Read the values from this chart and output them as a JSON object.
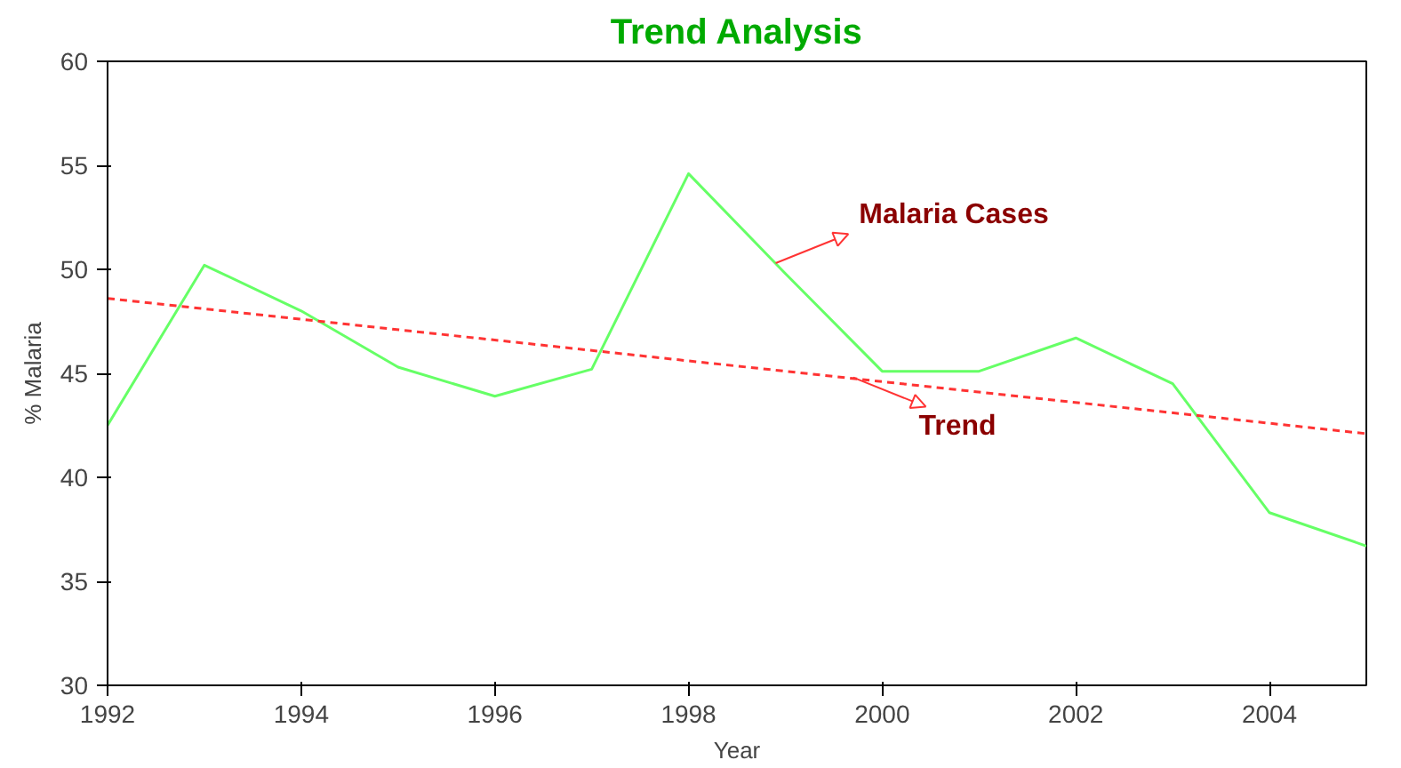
{
  "chart_data": {
    "type": "line",
    "title": "Trend Analysis",
    "xlabel": "Year",
    "ylabel": "% Malaria",
    "xlim": [
      1992,
      2005
    ],
    "ylim": [
      30,
      60
    ],
    "xticks": [
      1992,
      1994,
      1996,
      1998,
      2000,
      2002,
      2004
    ],
    "yticks": [
      30,
      35,
      40,
      45,
      50,
      55,
      60
    ],
    "grid": false,
    "marker": "none",
    "series": [
      {
        "color": "#66ff66",
        "x": [
          1992,
          1993,
          1994,
          1995,
          1996,
          1997,
          1998,
          1999,
          2000,
          2001,
          2002,
          2003,
          2004,
          2005
        ],
        "values": [
          42.5,
          50.2,
          48.0,
          45.3,
          43.9,
          45.2,
          54.6,
          49.8,
          45.1,
          45.1,
          46.7,
          44.5,
          38.3,
          36.7
        ],
        "line_style": "solid"
      },
      {
        "color": "#ff3333",
        "x": [
          1992,
          2005
        ],
        "values": [
          48.6,
          42.1
        ],
        "line_style": "dashed"
      }
    ],
    "annotations": [
      {
        "text": "Malaria Cases",
        "x": 1998.9,
        "y": 50.3
      },
      {
        "text": "Trend",
        "x": 1999.7,
        "y": 44.8
      }
    ]
  }
}
